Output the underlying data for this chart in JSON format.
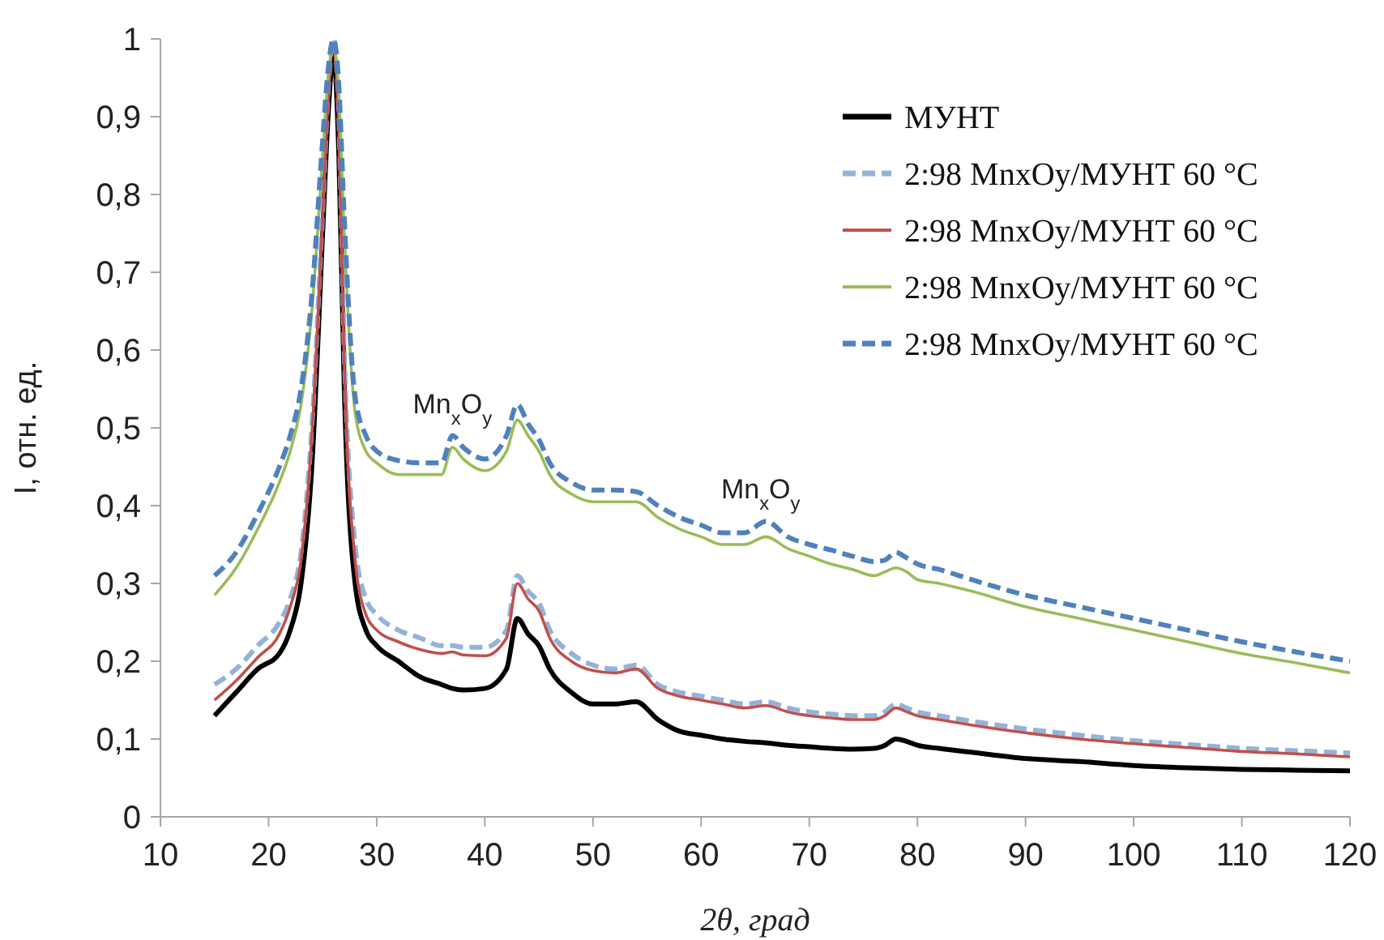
{
  "chart_data": {
    "type": "line",
    "xlabel": "2θ, град",
    "ylabel": "I, отн. ед.",
    "x": [
      15,
      17,
      19,
      21,
      22,
      23,
      24,
      25,
      25.5,
      26,
      26.5,
      27,
      28,
      29,
      30,
      32,
      34,
      36,
      37,
      38,
      40,
      42,
      43,
      44,
      45,
      46,
      48,
      50,
      52,
      54,
      56,
      58,
      60,
      62,
      64,
      66,
      68,
      70,
      72,
      74,
      76,
      77,
      78,
      79,
      80,
      82,
      85,
      90,
      95,
      100,
      105,
      110,
      115,
      120
    ],
    "series": [
      {
        "name": "МУНТ",
        "color": "#000000",
        "line_style": "solid",
        "values": [
          0.13,
          0.16,
          0.19,
          0.21,
          0.24,
          0.3,
          0.45,
          0.75,
          0.9,
          0.98,
          0.85,
          0.55,
          0.3,
          0.24,
          0.22,
          0.2,
          0.18,
          0.17,
          0.165,
          0.163,
          0.165,
          0.19,
          0.255,
          0.235,
          0.22,
          0.19,
          0.16,
          0.145,
          0.145,
          0.148,
          0.125,
          0.11,
          0.105,
          0.1,
          0.097,
          0.095,
          0.092,
          0.09,
          0.088,
          0.087,
          0.088,
          0.092,
          0.1,
          0.097,
          0.092,
          0.088,
          0.083,
          0.075,
          0.071,
          0.066,
          0.063,
          0.061,
          0.06,
          0.059
        ]
      },
      {
        "name": "2:98 MnxOy/МУНТ 60 °C",
        "color": "#95b3d7",
        "line_style": "dashed",
        "values": [
          0.17,
          0.19,
          0.22,
          0.25,
          0.28,
          0.34,
          0.5,
          0.78,
          0.93,
          1.0,
          0.9,
          0.6,
          0.35,
          0.28,
          0.26,
          0.24,
          0.23,
          0.22,
          0.22,
          0.218,
          0.218,
          0.24,
          0.31,
          0.29,
          0.275,
          0.24,
          0.21,
          0.195,
          0.19,
          0.195,
          0.17,
          0.16,
          0.155,
          0.15,
          0.145,
          0.148,
          0.14,
          0.135,
          0.132,
          0.13,
          0.13,
          0.135,
          0.145,
          0.14,
          0.135,
          0.13,
          0.123,
          0.113,
          0.105,
          0.098,
          0.093,
          0.088,
          0.085,
          0.082
        ]
      },
      {
        "name": "2:98 MnxOy/МУНТ 60 °C",
        "color": "#c0504d",
        "line_style": "solid",
        "values": [
          0.15,
          0.175,
          0.205,
          0.235,
          0.27,
          0.33,
          0.49,
          0.77,
          0.92,
          0.99,
          0.88,
          0.58,
          0.33,
          0.26,
          0.24,
          0.225,
          0.215,
          0.21,
          0.212,
          0.208,
          0.207,
          0.23,
          0.3,
          0.28,
          0.265,
          0.23,
          0.2,
          0.188,
          0.185,
          0.19,
          0.165,
          0.155,
          0.15,
          0.145,
          0.14,
          0.143,
          0.135,
          0.13,
          0.127,
          0.125,
          0.125,
          0.13,
          0.14,
          0.135,
          0.13,
          0.125,
          0.118,
          0.108,
          0.1,
          0.094,
          0.089,
          0.084,
          0.081,
          0.077
        ]
      },
      {
        "name": "2:98 MnxOy/МУНТ 60 °C",
        "color": "#9bbb59",
        "line_style": "solid",
        "values": [
          0.285,
          0.32,
          0.37,
          0.43,
          0.47,
          0.53,
          0.65,
          0.85,
          0.95,
          0.99,
          0.93,
          0.75,
          0.52,
          0.47,
          0.455,
          0.44,
          0.44,
          0.44,
          0.475,
          0.46,
          0.445,
          0.47,
          0.51,
          0.49,
          0.47,
          0.44,
          0.415,
          0.405,
          0.405,
          0.405,
          0.385,
          0.37,
          0.36,
          0.35,
          0.35,
          0.36,
          0.345,
          0.335,
          0.325,
          0.318,
          0.31,
          0.315,
          0.32,
          0.315,
          0.305,
          0.3,
          0.29,
          0.27,
          0.255,
          0.24,
          0.225,
          0.21,
          0.198,
          0.185
        ]
      },
      {
        "name": "2:98 MnxOy/МУНТ 60 °C",
        "color": "#4f81bd",
        "line_style": "dashed",
        "values": [
          0.31,
          0.34,
          0.39,
          0.45,
          0.49,
          0.55,
          0.67,
          0.87,
          0.96,
          1.0,
          0.94,
          0.77,
          0.54,
          0.49,
          0.47,
          0.458,
          0.455,
          0.455,
          0.49,
          0.475,
          0.46,
          0.49,
          0.53,
          0.505,
          0.485,
          0.455,
          0.43,
          0.42,
          0.42,
          0.418,
          0.4,
          0.385,
          0.375,
          0.365,
          0.365,
          0.38,
          0.36,
          0.35,
          0.343,
          0.335,
          0.328,
          0.33,
          0.34,
          0.333,
          0.325,
          0.318,
          0.305,
          0.285,
          0.27,
          0.255,
          0.24,
          0.225,
          0.212,
          0.2
        ]
      }
    ],
    "annotations": [
      {
        "text": "Mn$_{x}$O$_{y}$",
        "x": 37,
        "y": 0.49
      },
      {
        "text": "Mn$_{x}$O$_{y}$",
        "x": 65.5,
        "y": 0.38
      }
    ],
    "xlim": [
      10,
      120
    ],
    "xticks": [
      10,
      20,
      30,
      40,
      50,
      60,
      70,
      80,
      90,
      100,
      110,
      120
    ],
    "ylim": [
      0,
      1
    ],
    "yticks": [
      0,
      {
        "value": 0.1,
        "label": "0,1"
      },
      {
        "value": 0.2,
        "label": "0,2"
      },
      {
        "value": 0.3,
        "label": "0,3"
      },
      {
        "value": 0.4,
        "label": "0,4"
      },
      {
        "value": 0.5,
        "label": "0,5"
      },
      {
        "value": 0.6,
        "label": "0,6"
      },
      {
        "value": 0.7,
        "label": "0,7"
      },
      {
        "value": 0.8,
        "label": "0,8"
      },
      {
        "value": 0.9,
        "label": "0,9"
      },
      1
    ],
    "grid": false,
    "legend": "top right",
    "marker": "none"
  }
}
